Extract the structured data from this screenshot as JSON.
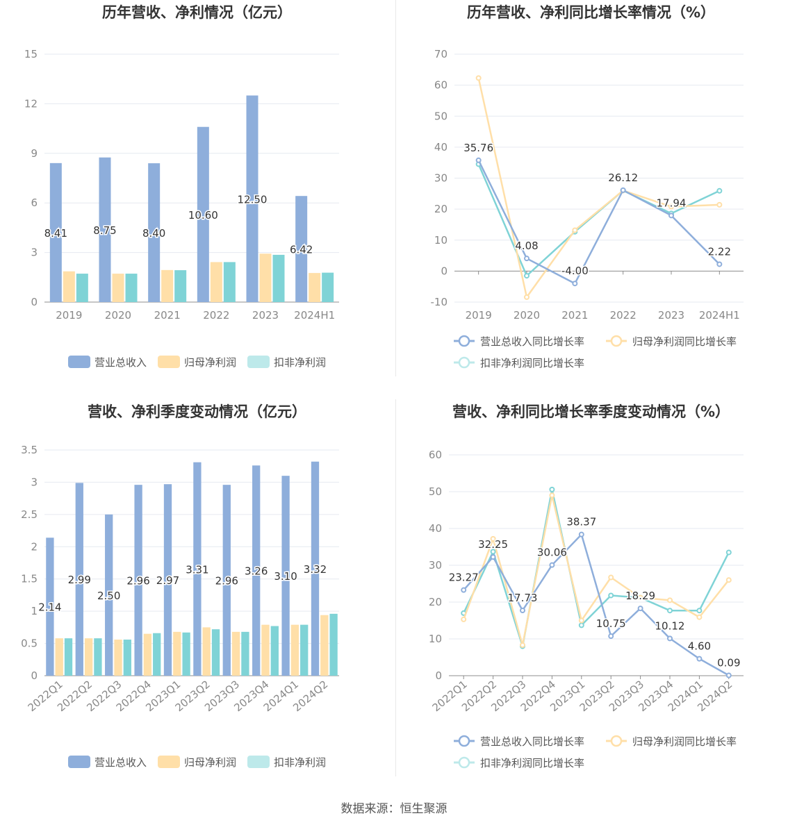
{
  "colors": {
    "revenue": "#8eaedb",
    "net": "#ffdfa8",
    "deduct": "#7fd3d6",
    "deduct_legend": "#bde9ea",
    "title": "#333333",
    "axis_text": "#888888",
    "grid": "#e6e9f0"
  },
  "source": "数据来源：恒生聚源",
  "chart_data": [
    {
      "id": "annual_amount",
      "type": "bar",
      "title": "历年营收、净利情况（亿元）",
      "categories": [
        "2019",
        "2020",
        "2021",
        "2022",
        "2023",
        "2024H1"
      ],
      "ylim": [
        0,
        15
      ],
      "yticks": [
        0,
        3,
        6,
        9,
        12,
        15
      ],
      "series": [
        {
          "name": "营业总收入",
          "values": [
            8.41,
            8.75,
            8.4,
            10.6,
            12.5,
            6.42
          ],
          "labels": [
            "8.41",
            "8.75",
            "8.40",
            "10.60",
            "12.50",
            "6.42"
          ]
        },
        {
          "name": "归母净利润",
          "values": [
            1.86,
            1.72,
            1.94,
            2.42,
            2.93,
            1.76
          ]
        },
        {
          "name": "扣非净利润",
          "values": [
            1.72,
            1.72,
            1.93,
            2.42,
            2.86,
            1.78
          ]
        }
      ],
      "grid": true,
      "legend": "bottom"
    },
    {
      "id": "annual_growth",
      "type": "line",
      "title": "历年营收、净利同比增长率情况（%）",
      "categories": [
        "2019",
        "2020",
        "2021",
        "2022",
        "2023",
        "2024H1"
      ],
      "ylim": [
        -10,
        70
      ],
      "yticks": [
        -10,
        0,
        10,
        20,
        30,
        40,
        50,
        60,
        70
      ],
      "series": [
        {
          "name": "营业总收入同比增长率",
          "values": [
            35.76,
            4.08,
            -4.0,
            26.12,
            17.94,
            2.22
          ],
          "labels": [
            "35.76",
            "4.08",
            "-4.00",
            "26.12",
            "17.94",
            "2.22"
          ]
        },
        {
          "name": "归母净利润同比增长率",
          "values": [
            62.3,
            -8.4,
            13.2,
            26.0,
            20.8,
            21.4
          ]
        },
        {
          "name": "扣非净利润同比增长率",
          "values": [
            34.5,
            -1.5,
            12.7,
            26.0,
            18.6,
            25.9
          ]
        }
      ],
      "grid": true,
      "legend": "bottom"
    },
    {
      "id": "quarterly_amount",
      "type": "bar",
      "title": "营收、净利季度变动情况（亿元）",
      "categories": [
        "2022Q1",
        "2022Q2",
        "2022Q3",
        "2022Q4",
        "2023Q1",
        "2023Q2",
        "2023Q3",
        "2023Q4",
        "2024Q1",
        "2024Q2"
      ],
      "ylim": [
        0,
        3.5
      ],
      "yticks": [
        0,
        0.5,
        1,
        1.5,
        2,
        2.5,
        3,
        3.5
      ],
      "ytick_labels": [
        "0",
        "0.5",
        "1",
        "1.5",
        "2",
        "2.5",
        "3",
        "3.5"
      ],
      "series": [
        {
          "name": "营业总收入",
          "values": [
            2.14,
            2.99,
            2.5,
            2.96,
            2.97,
            3.31,
            2.96,
            3.26,
            3.1,
            3.32
          ],
          "labels": [
            "2.14",
            "2.99",
            "2.50",
            "2.96",
            "2.97",
            "3.31",
            "2.96",
            "3.26",
            "3.10",
            "3.32"
          ]
        },
        {
          "name": "归母净利润",
          "values": [
            0.58,
            0.58,
            0.56,
            0.65,
            0.68,
            0.75,
            0.68,
            0.79,
            0.79,
            0.94
          ]
        },
        {
          "name": "扣非净利润",
          "values": [
            0.58,
            0.58,
            0.56,
            0.66,
            0.67,
            0.72,
            0.68,
            0.77,
            0.79,
            0.96
          ]
        }
      ],
      "grid": true,
      "legend": "bottom"
    },
    {
      "id": "quarterly_growth",
      "type": "line",
      "title": "营收、净利同比增长率季度变动情况（%）",
      "categories": [
        "2022Q1",
        "2022Q2",
        "2022Q3",
        "2022Q4",
        "2023Q1",
        "2023Q2",
        "2023Q3",
        "2023Q4",
        "2024Q1",
        "2024Q2"
      ],
      "ylim": [
        0,
        60
      ],
      "yticks": [
        0,
        10,
        20,
        30,
        40,
        50,
        60
      ],
      "series": [
        {
          "name": "营业总收入同比增长率",
          "values": [
            23.27,
            32.25,
            17.73,
            30.06,
            38.37,
            10.75,
            18.29,
            10.12,
            4.6,
            0.09
          ],
          "labels": [
            "23.27",
            "32.25",
            "17.73",
            "30.06",
            "38.37",
            "10.75",
            "18.29",
            "10.12",
            "4.60",
            "0.09"
          ]
        },
        {
          "name": "归母净利润同比增长率",
          "values": [
            15.3,
            37.2,
            8.3,
            49.0,
            15.0,
            26.7,
            21.2,
            20.5,
            15.9,
            26.0
          ]
        },
        {
          "name": "扣非净利润同比增长率",
          "values": [
            17.0,
            33.7,
            8.0,
            50.6,
            13.7,
            21.8,
            21.2,
            17.7,
            17.7,
            33.5
          ]
        }
      ],
      "grid": true,
      "legend": "bottom"
    }
  ]
}
